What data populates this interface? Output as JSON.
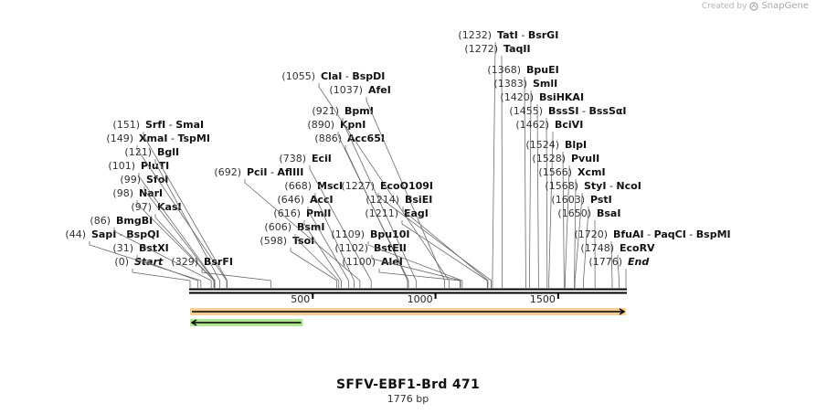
{
  "credit": {
    "prefix": "Created by",
    "brand": "SnapGene"
  },
  "sequence": {
    "name": "SFFV-EBF1-Brd 471",
    "length_label": "1776 bp",
    "length": 1776
  },
  "ruler": {
    "ticks": [
      500,
      1000,
      1500
    ]
  },
  "features": [
    {
      "name": "orange-feature",
      "start": 1,
      "end": 1776,
      "direction": "forward",
      "color": "#f0a63c"
    },
    {
      "name": "green-feature",
      "start": 1,
      "end": 460,
      "direction": "reverse",
      "color": "#6fcf3a"
    }
  ],
  "sites": [
    {
      "label": "(0)",
      "pos": 0,
      "names": [
        "Start"
      ],
      "italic": true
    },
    {
      "label": "(31)",
      "pos": 31,
      "names": [
        "BstXI"
      ]
    },
    {
      "label": "(44)",
      "pos": 44,
      "names": [
        "SapI",
        "BspQI"
      ]
    },
    {
      "label": "(86)",
      "pos": 86,
      "names": [
        "BmgBI"
      ]
    },
    {
      "label": "(97)",
      "pos": 97,
      "names": [
        "KasI"
      ]
    },
    {
      "label": "(98)",
      "pos": 98,
      "names": [
        "NarI"
      ]
    },
    {
      "label": "(99)",
      "pos": 99,
      "names": [
        "SfoI"
      ]
    },
    {
      "label": "(101)",
      "pos": 101,
      "names": [
        "PluTI"
      ]
    },
    {
      "label": "(121)",
      "pos": 121,
      "names": [
        "BglI"
      ]
    },
    {
      "label": "(149)",
      "pos": 149,
      "names": [
        "XmaI",
        "TspMI"
      ]
    },
    {
      "label": "(151)",
      "pos": 151,
      "names": [
        "SrfI",
        "SmaI"
      ]
    },
    {
      "label": "(329)",
      "pos": 329,
      "names": [
        "BsrFI"
      ]
    },
    {
      "label": "(598)",
      "pos": 598,
      "names": [
        "TsoI"
      ]
    },
    {
      "label": "(606)",
      "pos": 606,
      "names": [
        "BsmI"
      ]
    },
    {
      "label": "(616)",
      "pos": 616,
      "names": [
        "PmlI"
      ]
    },
    {
      "label": "(646)",
      "pos": 646,
      "names": [
        "AccI"
      ]
    },
    {
      "label": "(668)",
      "pos": 668,
      "names": [
        "MscI"
      ]
    },
    {
      "label": "(692)",
      "pos": 692,
      "names": [
        "PciI",
        "AflIII"
      ]
    },
    {
      "label": "(738)",
      "pos": 738,
      "names": [
        "EciI"
      ]
    },
    {
      "label": "(886)",
      "pos": 886,
      "names": [
        "Acc65I"
      ]
    },
    {
      "label": "(890)",
      "pos": 890,
      "names": [
        "KpnI"
      ]
    },
    {
      "label": "(921)",
      "pos": 921,
      "names": [
        "BpmI"
      ]
    },
    {
      "label": "(1037)",
      "pos": 1037,
      "names": [
        "AfeI"
      ]
    },
    {
      "label": "(1055)",
      "pos": 1055,
      "names": [
        "ClaI",
        "BspDI"
      ]
    },
    {
      "label": "(1100)",
      "pos": 1100,
      "names": [
        "AleI"
      ]
    },
    {
      "label": "(1102)",
      "pos": 1102,
      "names": [
        "BstEII"
      ]
    },
    {
      "label": "(1109)",
      "pos": 1109,
      "names": [
        "Bpu10I"
      ]
    },
    {
      "label": "(1211)",
      "pos": 1211,
      "names": [
        "EagI"
      ]
    },
    {
      "label": "(1214)",
      "pos": 1214,
      "names": [
        "BsiEI"
      ]
    },
    {
      "label": "(1227)",
      "pos": 1227,
      "names": [
        "EcoO109I"
      ]
    },
    {
      "label": "(1232)",
      "pos": 1232,
      "names": [
        "TatI",
        "BsrGI"
      ]
    },
    {
      "label": "(1272)",
      "pos": 1272,
      "names": [
        "TaqII"
      ]
    },
    {
      "label": "(1368)",
      "pos": 1368,
      "names": [
        "BpuEI"
      ]
    },
    {
      "label": "(1383)",
      "pos": 1383,
      "names": [
        "SmlI"
      ]
    },
    {
      "label": "(1420)",
      "pos": 1420,
      "names": [
        "BsiHKAI"
      ]
    },
    {
      "label": "(1455)",
      "pos": 1455,
      "names": [
        "BssSI",
        "BssSαI"
      ]
    },
    {
      "label": "(1462)",
      "pos": 1462,
      "names": [
        "BciVI"
      ]
    },
    {
      "label": "(1524)",
      "pos": 1524,
      "names": [
        "BlpI"
      ]
    },
    {
      "label": "(1528)",
      "pos": 1528,
      "names": [
        "PvuII"
      ]
    },
    {
      "label": "(1566)",
      "pos": 1566,
      "names": [
        "XcmI"
      ]
    },
    {
      "label": "(1568)",
      "pos": 1568,
      "names": [
        "StyI",
        "NcoI"
      ]
    },
    {
      "label": "(1603)",
      "pos": 1603,
      "names": [
        "PstI"
      ]
    },
    {
      "label": "(1650)",
      "pos": 1650,
      "names": [
        "BsaI"
      ]
    },
    {
      "label": "(1720)",
      "pos": 1720,
      "names": [
        "BfuAI",
        "PaqCI",
        "BspMI"
      ]
    },
    {
      "label": "(1748)",
      "pos": 1748,
      "names": [
        "EcoRV"
      ]
    },
    {
      "label": "(1776)",
      "pos": 1776,
      "names": [
        "End"
      ],
      "italic": true
    }
  ]
}
